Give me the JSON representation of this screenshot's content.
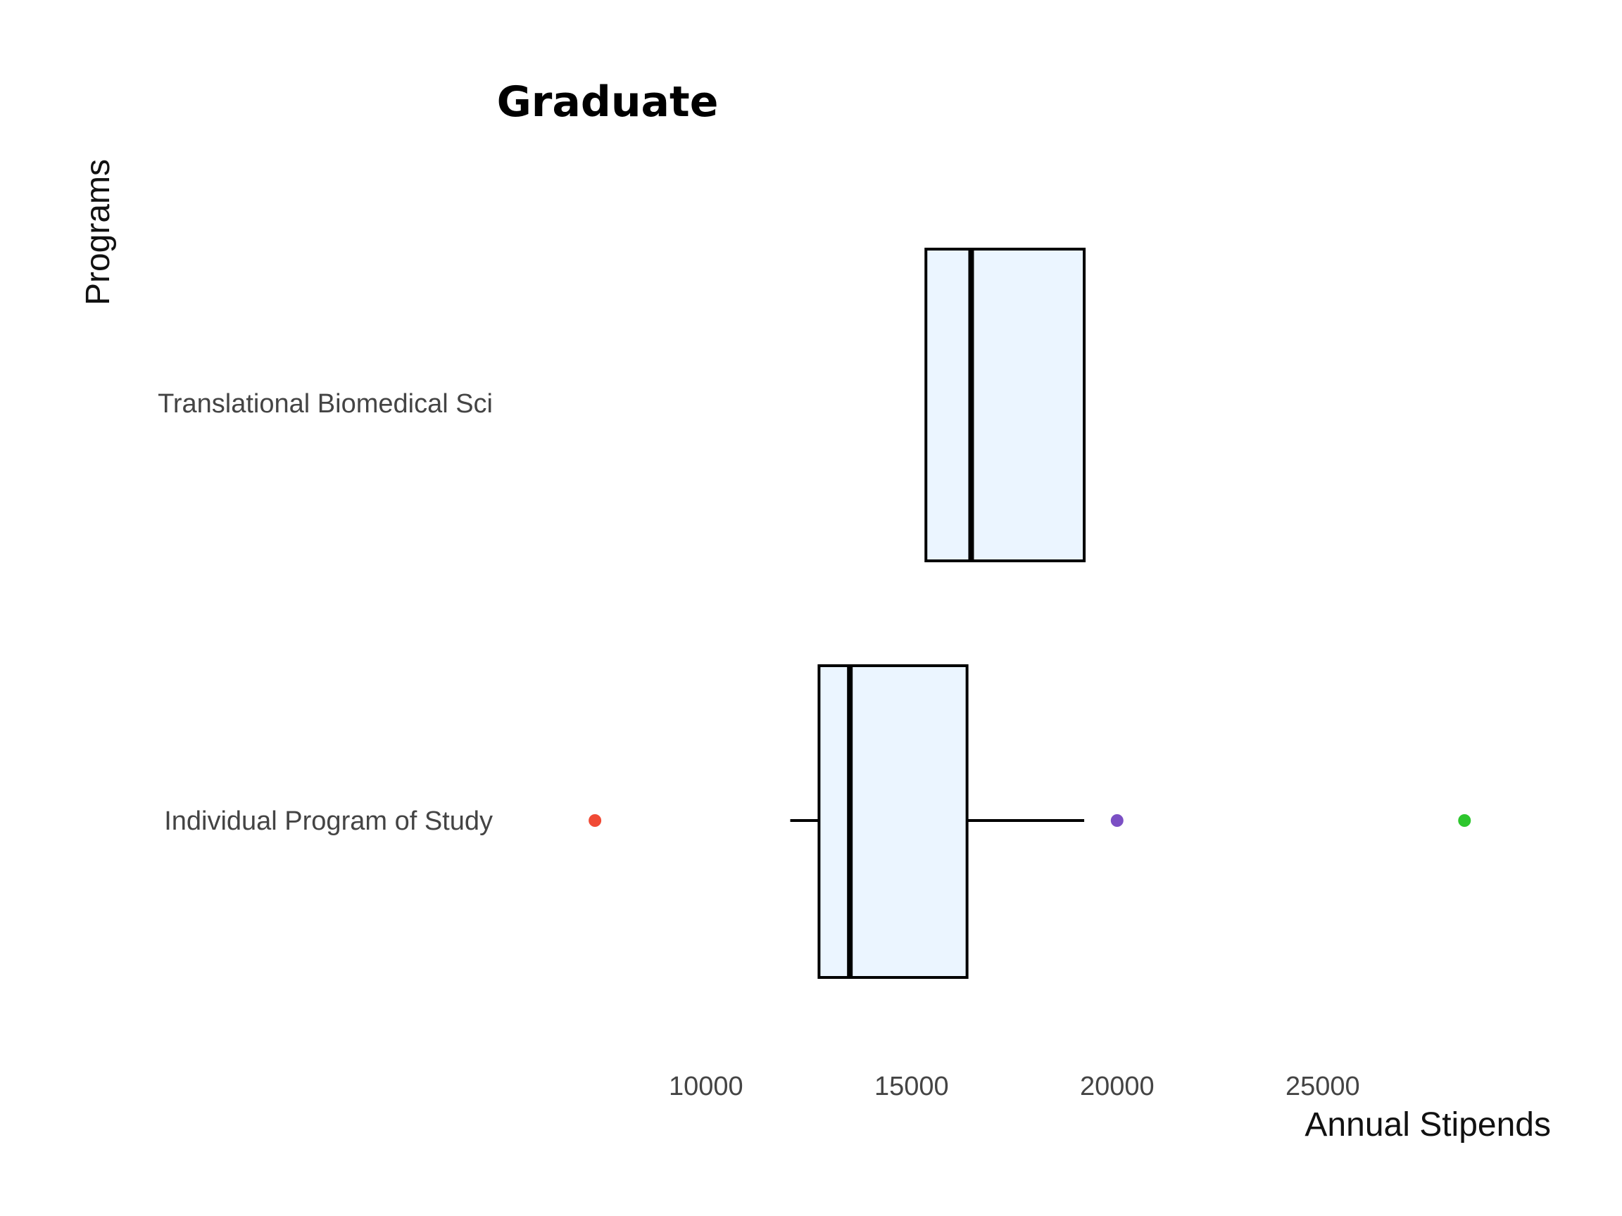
{
  "chart_data": {
    "type": "boxplot",
    "title": "Graduate",
    "xlabel": "Annual Stipends",
    "ylabel": "Programs",
    "xlim": [
      5500,
      30500
    ],
    "xticks": [
      10000,
      15000,
      20000,
      25000
    ],
    "xtick_labels": [
      "10000",
      "15000",
      "20000",
      "25000"
    ],
    "grid": false,
    "box_fill": "#EBF5FF",
    "box_stroke": "#000000",
    "categories": [
      "Translational Biomedical Sci",
      "Individual Program of Study"
    ],
    "boxes": [
      {
        "category": "Translational Biomedical Sci",
        "q1": 15350,
        "median": 16450,
        "q3": 19200,
        "whisker_low": 15350,
        "whisker_high": 19200,
        "outliers": []
      },
      {
        "category": "Individual Program of Study",
        "q1": 12750,
        "median": 13500,
        "q3": 16350,
        "whisker_low": 12050,
        "whisker_high": 19200,
        "outliers": [
          {
            "value": 7300,
            "color": "#F04A35"
          },
          {
            "value": 20000,
            "color": "#7B4FC4"
          },
          {
            "value": 28450,
            "color": "#2DC62D"
          }
        ]
      }
    ]
  }
}
